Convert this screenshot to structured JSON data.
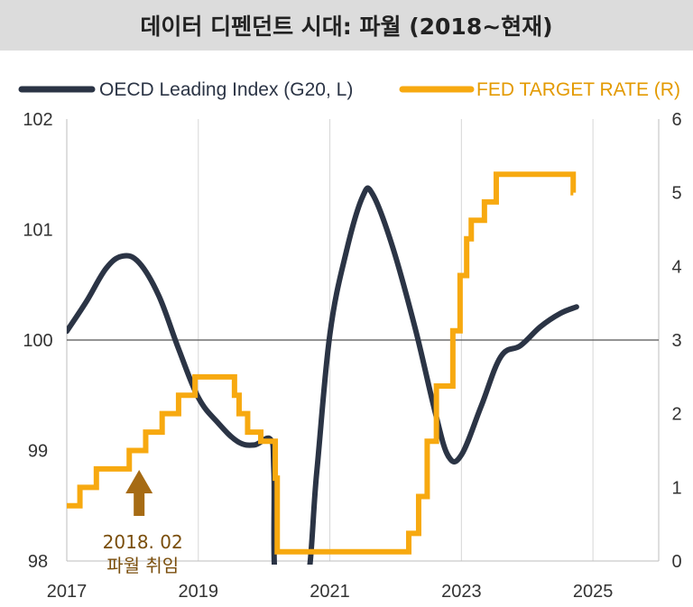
{
  "header": {
    "title": "데이터 디펜던트 시대: 파월 (2018~현재)"
  },
  "chart_data": {
    "type": "line",
    "title": "데이터 디펜던트 시대: 파월 (2018~현재)",
    "xlim": [
      2017,
      2026
    ],
    "x_ticks": [
      "2017",
      "2019",
      "2021",
      "2023",
      "2025"
    ],
    "x_tick_values": [
      2017,
      2019,
      2021,
      2023,
      2025
    ],
    "y_left": {
      "lim": [
        98,
        102
      ],
      "ticks": [
        "98",
        "99",
        "100",
        "101",
        "102"
      ],
      "tick_values": [
        98,
        99,
        100,
        101,
        102
      ]
    },
    "y_right": {
      "lim": [
        0,
        6
      ],
      "ticks": [
        "0",
        "1",
        "2",
        "3",
        "4",
        "5",
        "6"
      ],
      "tick_values": [
        0,
        1,
        2,
        3,
        4,
        5,
        6
      ]
    },
    "grid": "vertical",
    "reference_line_left_axis": 100,
    "legend_position": "top",
    "series": [
      {
        "name": "OECD Leading Index (G20, L)",
        "axis": "left",
        "color": "#2b3445",
        "x": [
          2017.0,
          2017.3,
          2017.6,
          2017.85,
          2018.1,
          2018.4,
          2018.7,
          2019.0,
          2019.3,
          2019.6,
          2019.85,
          2020.1,
          2020.15,
          2020.2,
          2020.62,
          2020.8,
          2021.0,
          2021.25,
          2021.5,
          2021.65,
          2021.95,
          2022.3,
          2022.6,
          2022.8,
          2023.0,
          2023.3,
          2023.6,
          2023.9,
          2024.2,
          2024.5,
          2024.75
        ],
        "y": [
          100.08,
          100.35,
          100.65,
          100.76,
          100.7,
          100.4,
          99.92,
          99.48,
          99.25,
          99.08,
          99.05,
          99.1,
          98.8,
          97.7,
          97.7,
          98.8,
          100.05,
          100.8,
          101.3,
          101.32,
          100.85,
          100.1,
          99.35,
          98.95,
          98.96,
          99.4,
          99.85,
          99.95,
          100.12,
          100.24,
          100.3
        ]
      },
      {
        "name": "FED TARGET RATE (R)",
        "axis": "right",
        "color": "#f7a910",
        "step": true,
        "x": [
          2017.0,
          2017.2,
          2017.45,
          2017.95,
          2018.2,
          2018.45,
          2018.7,
          2018.95,
          2019.55,
          2019.62,
          2019.75,
          2019.95,
          2020.17,
          2020.2,
          2022.2,
          2022.35,
          2022.48,
          2022.62,
          2022.87,
          2022.98,
          2023.08,
          2023.15,
          2023.35,
          2023.53,
          2024.7
        ],
        "y": [
          0.75,
          1.0,
          1.25,
          1.5,
          1.75,
          2.0,
          2.25,
          2.5,
          2.25,
          2.0,
          1.75,
          1.625,
          1.125,
          0.125,
          0.375,
          0.875,
          1.625,
          2.375,
          3.125,
          3.875,
          4.375,
          4.625,
          4.875,
          5.25,
          5.0
        ]
      }
    ],
    "annotation": {
      "x": 2018.1,
      "arrow_color": "#a66b14",
      "text_color": "#7a4e0c",
      "lines": [
        "2018. 02",
        "파월 취임"
      ]
    }
  }
}
